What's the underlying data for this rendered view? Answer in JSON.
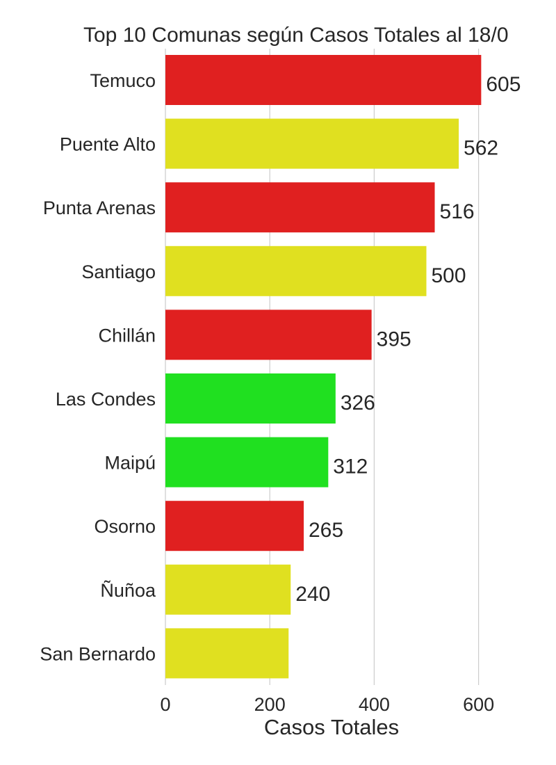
{
  "chart_data": {
    "type": "bar",
    "orientation": "horizontal",
    "title": "Top 10 Comunas según  Casos Totales al 18/0",
    "xlabel": "Casos Totales",
    "ylabel": "",
    "xlim": [
      0,
      740
    ],
    "xticks": [
      0,
      200,
      400,
      600
    ],
    "grid": "vertical",
    "categories": [
      "Temuco",
      "Puente Alto",
      "Punta Arenas",
      "Santiago",
      "Chillán",
      "Las Condes",
      "Maipú",
      "Osorno",
      "Ñuñoa",
      "San Bernardo"
    ],
    "values": [
      605,
      562,
      516,
      500,
      395,
      326,
      312,
      265,
      240,
      236
    ],
    "data_labels": [
      "605",
      "562",
      "516",
      "500",
      "395",
      "326",
      "312",
      "265",
      "240",
      ""
    ],
    "colors": [
      "#e02020",
      "#e0e020",
      "#e02020",
      "#e0e020",
      "#e02020",
      "#20e020",
      "#20e020",
      "#e02020",
      "#e0e020",
      "#e0e020"
    ]
  }
}
